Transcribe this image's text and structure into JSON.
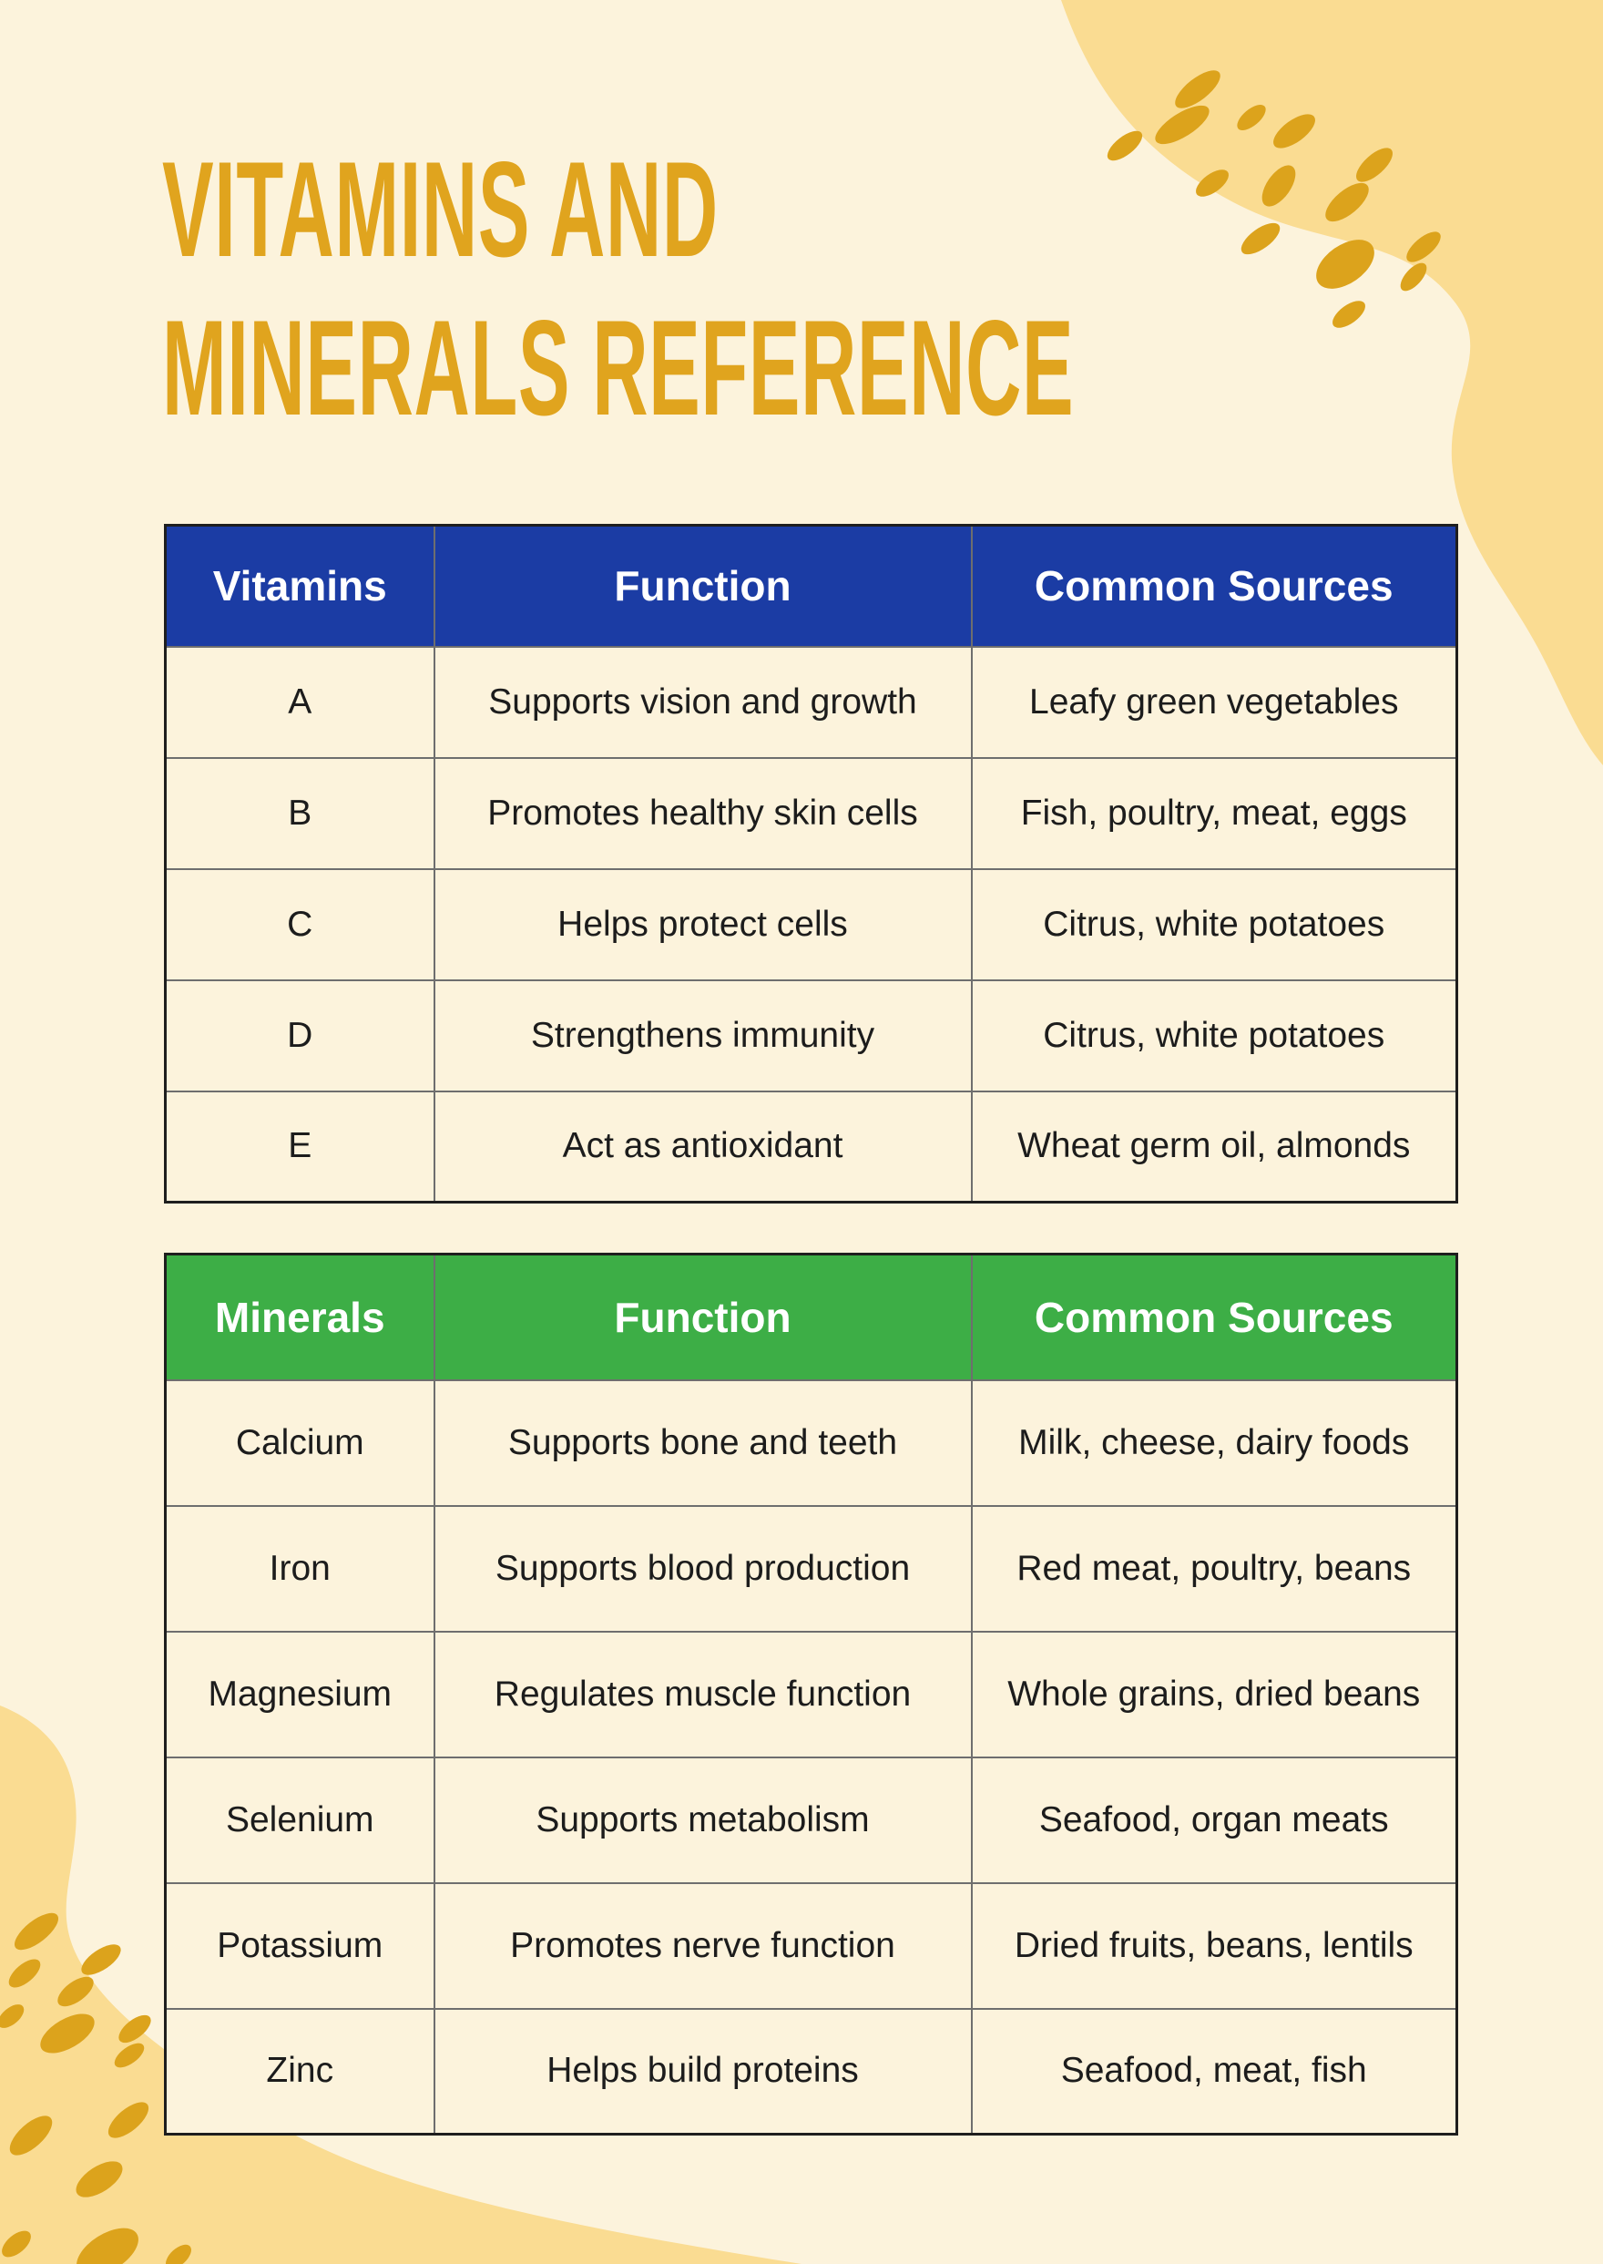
{
  "title": {
    "line1": "VITAMINS AND",
    "line2": "MINERALS REFERENCE"
  },
  "colors": {
    "background": "#FCF3DC",
    "title_gold": "#E0A41E",
    "corner_blob_gold": "#FADC92",
    "seed_dot_gold": "#DCA31C",
    "vitamins_header_bg": "#1B3CA4",
    "minerals_header_bg": "#3DAE46",
    "header_text": "#FFFFFF",
    "cell_text": "#1C1C1C",
    "table_border_dark": "#1E1E1E",
    "table_border_light": "#6E6E6E"
  },
  "vitamins_table": {
    "headers": [
      "Vitamins",
      "Function",
      "Common Sources"
    ],
    "rows": [
      [
        "A",
        "Supports vision and growth",
        "Leafy green vegetables"
      ],
      [
        "B",
        "Promotes healthy skin cells",
        "Fish, poultry, meat, eggs"
      ],
      [
        "C",
        "Helps protect cells",
        "Citrus, white potatoes"
      ],
      [
        "D",
        "Strengthens immunity",
        "Citrus, white potatoes"
      ],
      [
        "E",
        "Act as antioxidant",
        "Wheat germ oil, almonds"
      ]
    ]
  },
  "minerals_table": {
    "headers": [
      "Minerals",
      "Function",
      "Common Sources"
    ],
    "rows": [
      [
        "Calcium",
        "Supports bone and teeth",
        "Milk, cheese, dairy foods"
      ],
      [
        "Iron",
        "Supports blood production",
        "Red meat, poultry, beans"
      ],
      [
        "Magnesium",
        "Regulates muscle function",
        "Whole grains, dried beans"
      ],
      [
        "Selenium",
        "Supports metabolism",
        "Seafood, organ meats"
      ],
      [
        "Potassium",
        "Promotes nerve function",
        "Dried fruits, beans, lentils"
      ],
      [
        "Zinc",
        "Helps build proteins",
        "Seafood, meat, fish"
      ]
    ]
  }
}
